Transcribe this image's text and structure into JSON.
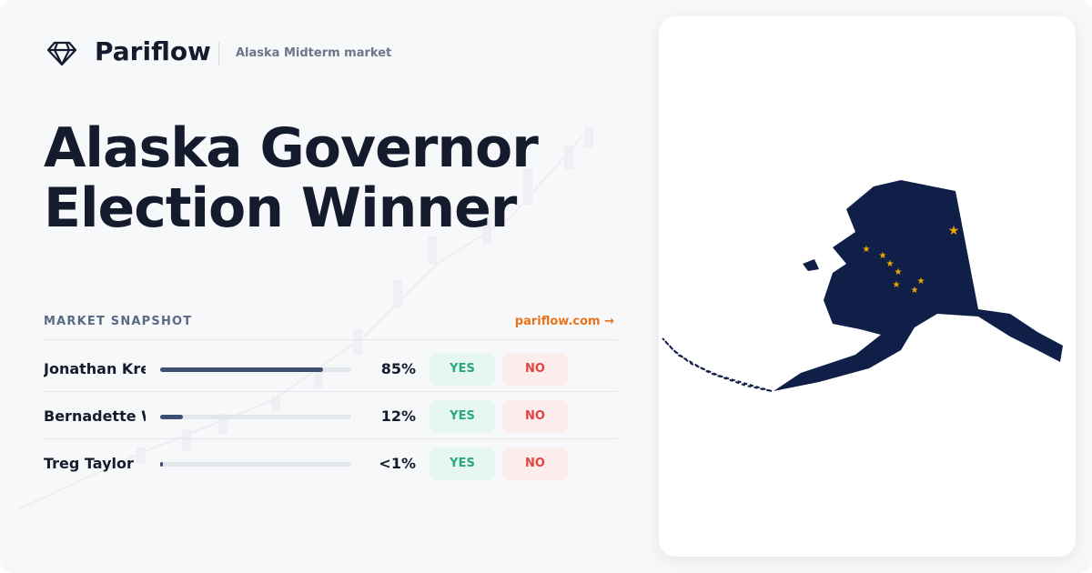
{
  "header": {
    "brand": "Pariflow",
    "subtitle": "Alaska Midterm market"
  },
  "title": "Alaska Governor Election Winner",
  "snapshot": {
    "heading": "MARKET SNAPSHOT",
    "link": "pariflow.com →"
  },
  "candidates": [
    {
      "name": "Jonathan Kre",
      "value": 85,
      "label": "85%",
      "yes": "YES",
      "no": "NO"
    },
    {
      "name": "Bernadette W",
      "value": 12,
      "label": "12%",
      "yes": "YES",
      "no": "NO"
    },
    {
      "name": "Treg Taylor",
      "value": 0.5,
      "label": "<1%",
      "yes": "YES",
      "no": "NO"
    }
  ]
}
